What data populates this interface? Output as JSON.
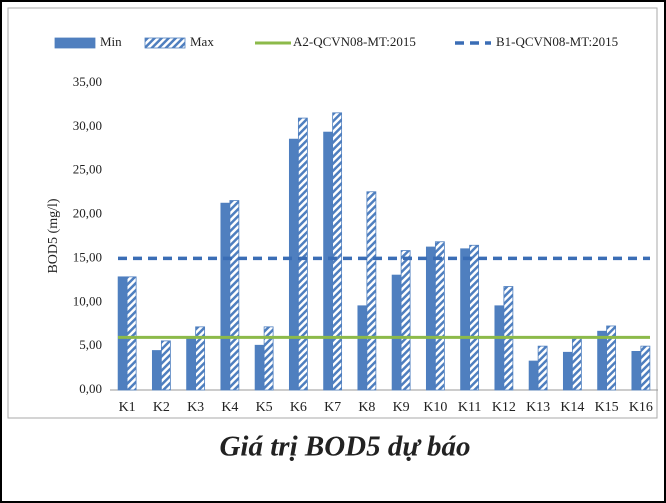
{
  "chart_data": {
    "type": "bar",
    "caption": "Giá trị BOD5 dự báo",
    "y_label": "BOD5 (mg/l)",
    "categories": [
      "K1",
      "K2",
      "K3",
      "K4",
      "K5",
      "K6",
      "K7",
      "K8",
      "K9",
      "K10",
      "K11",
      "K12",
      "K13",
      "K14",
      "K15",
      "K16"
    ],
    "series": [
      {
        "name": "Min",
        "color": "#4f7fbf",
        "pattern": "solid",
        "values": [
          12.9,
          4.5,
          6.0,
          21.3,
          5.1,
          28.6,
          29.4,
          9.6,
          13.1,
          16.3,
          16.1,
          9.6,
          3.3,
          4.3,
          6.7,
          4.4
        ]
      },
      {
        "name": "Max",
        "color": "#4f7fbf",
        "pattern": "hatch",
        "values": [
          12.9,
          5.6,
          7.2,
          21.6,
          7.2,
          31.0,
          31.6,
          22.6,
          15.9,
          16.9,
          16.5,
          11.8,
          5.0,
          6.0,
          7.3,
          5.0
        ]
      }
    ],
    "lines": [
      {
        "name": "A2-QCVN08-MT:2015",
        "color": "#8cba4a",
        "style": "solid",
        "value": 6
      },
      {
        "name": "B1-QCVN08-MT:2015",
        "color": "#3a6db5",
        "style": "dashed",
        "value": 15
      }
    ],
    "ylim": [
      0,
      35
    ],
    "yticks": [
      {
        "value": 0,
        "label": "0,00"
      },
      {
        "value": 5,
        "label": "5,00"
      },
      {
        "value": 10,
        "label": "10,00"
      },
      {
        "value": 15,
        "label": "15,00"
      },
      {
        "value": 20,
        "label": "20,00"
      },
      {
        "value": 25,
        "label": "25,00"
      },
      {
        "value": 30,
        "label": "30,00"
      },
      {
        "value": 35,
        "label": "35,00"
      }
    ],
    "grid": false
  }
}
